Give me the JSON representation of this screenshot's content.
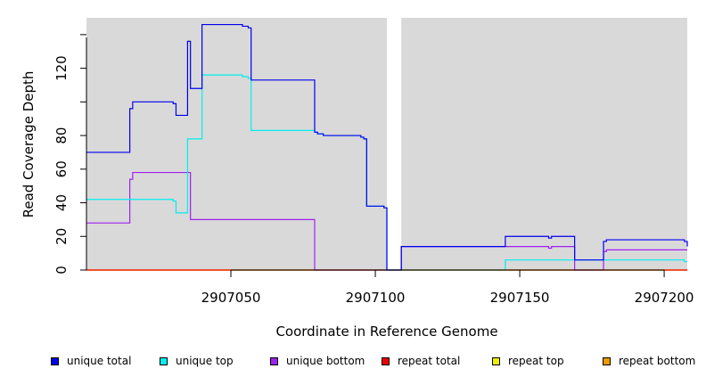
{
  "chart_data": {
    "type": "line",
    "title": "",
    "xlabel": "Coordinate in Reference Genome",
    "ylabel": "Read Coverage Depth",
    "xlim": [
      2907000,
      2907208
    ],
    "ylim": [
      0,
      150
    ],
    "x_ticks": [
      2907050,
      2907100,
      2907150,
      2907200
    ],
    "x_tick_labels": [
      "2907050",
      "2907100",
      "2907150",
      "2907200"
    ],
    "y_ticks": [
      0,
      20,
      40,
      60,
      80,
      100,
      120,
      140
    ],
    "y_tick_labels": [
      "0",
      "20",
      "40",
      "60",
      "80",
      "",
      "120",
      ""
    ],
    "grid": false,
    "background": "#d9d9d9",
    "gap": {
      "start": 2907104,
      "end": 2907109,
      "color": "#ffffff"
    },
    "legend_position": "bottom",
    "series": [
      {
        "name": "unique total",
        "color": "#0000ee",
        "points": [
          [
            2907000,
            70
          ],
          [
            2907015,
            70
          ],
          [
            2907015,
            96
          ],
          [
            2907016,
            96
          ],
          [
            2907016,
            100
          ],
          [
            2907030,
            100
          ],
          [
            2907030,
            99
          ],
          [
            2907031,
            99
          ],
          [
            2907031,
            92
          ],
          [
            2907035,
            92
          ],
          [
            2907035,
            136
          ],
          [
            2907036,
            136
          ],
          [
            2907036,
            108
          ],
          [
            2907040,
            108
          ],
          [
            2907040,
            146
          ],
          [
            2907054,
            146
          ],
          [
            2907054,
            145
          ],
          [
            2907056,
            145
          ],
          [
            2907056,
            144
          ],
          [
            2907057,
            144
          ],
          [
            2907057,
            113
          ],
          [
            2907079,
            113
          ],
          [
            2907079,
            82
          ],
          [
            2907080,
            82
          ],
          [
            2907080,
            81
          ],
          [
            2907082,
            81
          ],
          [
            2907082,
            80
          ],
          [
            2907095,
            80
          ],
          [
            2907095,
            79
          ],
          [
            2907096,
            79
          ],
          [
            2907096,
            78
          ],
          [
            2907097,
            78
          ],
          [
            2907097,
            38
          ],
          [
            2907103,
            38
          ],
          [
            2907103,
            37
          ],
          [
            2907104,
            37
          ],
          [
            2907104,
            0
          ],
          [
            2907109,
            0
          ],
          [
            2907109,
            14
          ],
          [
            2907145,
            14
          ],
          [
            2907145,
            20
          ],
          [
            2907160,
            20
          ],
          [
            2907160,
            19
          ],
          [
            2907161,
            19
          ],
          [
            2907161,
            20
          ],
          [
            2907169,
            20
          ],
          [
            2907169,
            6
          ],
          [
            2907179,
            6
          ],
          [
            2907179,
            17
          ],
          [
            2907180,
            17
          ],
          [
            2907180,
            18
          ],
          [
            2907207,
            18
          ],
          [
            2907207,
            17
          ],
          [
            2907208,
            17
          ],
          [
            2907208,
            14
          ]
        ]
      },
      {
        "name": "unique top",
        "color": "#00eeee",
        "points": [
          [
            2907000,
            42
          ],
          [
            2907030,
            42
          ],
          [
            2907030,
            41
          ],
          [
            2907031,
            41
          ],
          [
            2907031,
            34
          ],
          [
            2907035,
            34
          ],
          [
            2907035,
            78
          ],
          [
            2907040,
            78
          ],
          [
            2907040,
            116
          ],
          [
            2907054,
            116
          ],
          [
            2907054,
            115
          ],
          [
            2907056,
            115
          ],
          [
            2907056,
            114
          ],
          [
            2907057,
            114
          ],
          [
            2907057,
            83
          ],
          [
            2907079,
            83
          ],
          [
            2907079,
            82
          ],
          [
            2907080,
            82
          ],
          [
            2907080,
            81
          ],
          [
            2907082,
            81
          ],
          [
            2907082,
            80
          ],
          [
            2907095,
            80
          ],
          [
            2907095,
            79
          ],
          [
            2907096,
            79
          ],
          [
            2907096,
            78
          ],
          [
            2907097,
            78
          ],
          [
            2907097,
            38
          ],
          [
            2907103,
            38
          ],
          [
            2907103,
            37
          ],
          [
            2907104,
            37
          ],
          [
            2907104,
            0
          ],
          [
            2907109,
            0
          ],
          [
            2907145,
            0
          ],
          [
            2907145,
            6
          ],
          [
            2907207,
            6
          ],
          [
            2907207,
            5
          ],
          [
            2907208,
            5
          ]
        ]
      },
      {
        "name": "unique bottom",
        "color": "#a020f0",
        "points": [
          [
            2907000,
            28
          ],
          [
            2907015,
            28
          ],
          [
            2907015,
            54
          ],
          [
            2907016,
            54
          ],
          [
            2907016,
            58
          ],
          [
            2907036,
            58
          ],
          [
            2907036,
            30
          ],
          [
            2907079,
            30
          ],
          [
            2907079,
            0
          ],
          [
            2907104,
            0
          ],
          [
            2907109,
            0
          ],
          [
            2907109,
            14
          ],
          [
            2907145,
            14
          ],
          [
            2907160,
            14
          ],
          [
            2907160,
            13
          ],
          [
            2907161,
            13
          ],
          [
            2907161,
            14
          ],
          [
            2907169,
            14
          ],
          [
            2907169,
            0
          ],
          [
            2907179,
            0
          ],
          [
            2907179,
            11
          ],
          [
            2907180,
            11
          ],
          [
            2907180,
            12
          ],
          [
            2907208,
            12
          ]
        ]
      },
      {
        "name": "repeat total",
        "color": "#ee0000",
        "points": [
          [
            2907000,
            0
          ],
          [
            2907208,
            0
          ]
        ]
      },
      {
        "name": "repeat top",
        "color": "#eeee00",
        "points": [
          [
            2907000,
            0
          ],
          [
            2907208,
            0
          ]
        ]
      },
      {
        "name": "repeat bottom",
        "color": "#ee9a00",
        "points": [
          [
            2907000,
            0
          ],
          [
            2907208,
            0
          ]
        ]
      }
    ]
  },
  "legend": {
    "items": [
      {
        "label": "unique total",
        "color": "#0000ee"
      },
      {
        "label": "unique top",
        "color": "#00eeee"
      },
      {
        "label": "unique bottom",
        "color": "#a020f0"
      },
      {
        "label": "repeat total",
        "color": "#ee0000"
      },
      {
        "label": "repeat top",
        "color": "#eeee00"
      },
      {
        "label": "repeat bottom",
        "color": "#ee9a00"
      }
    ]
  }
}
